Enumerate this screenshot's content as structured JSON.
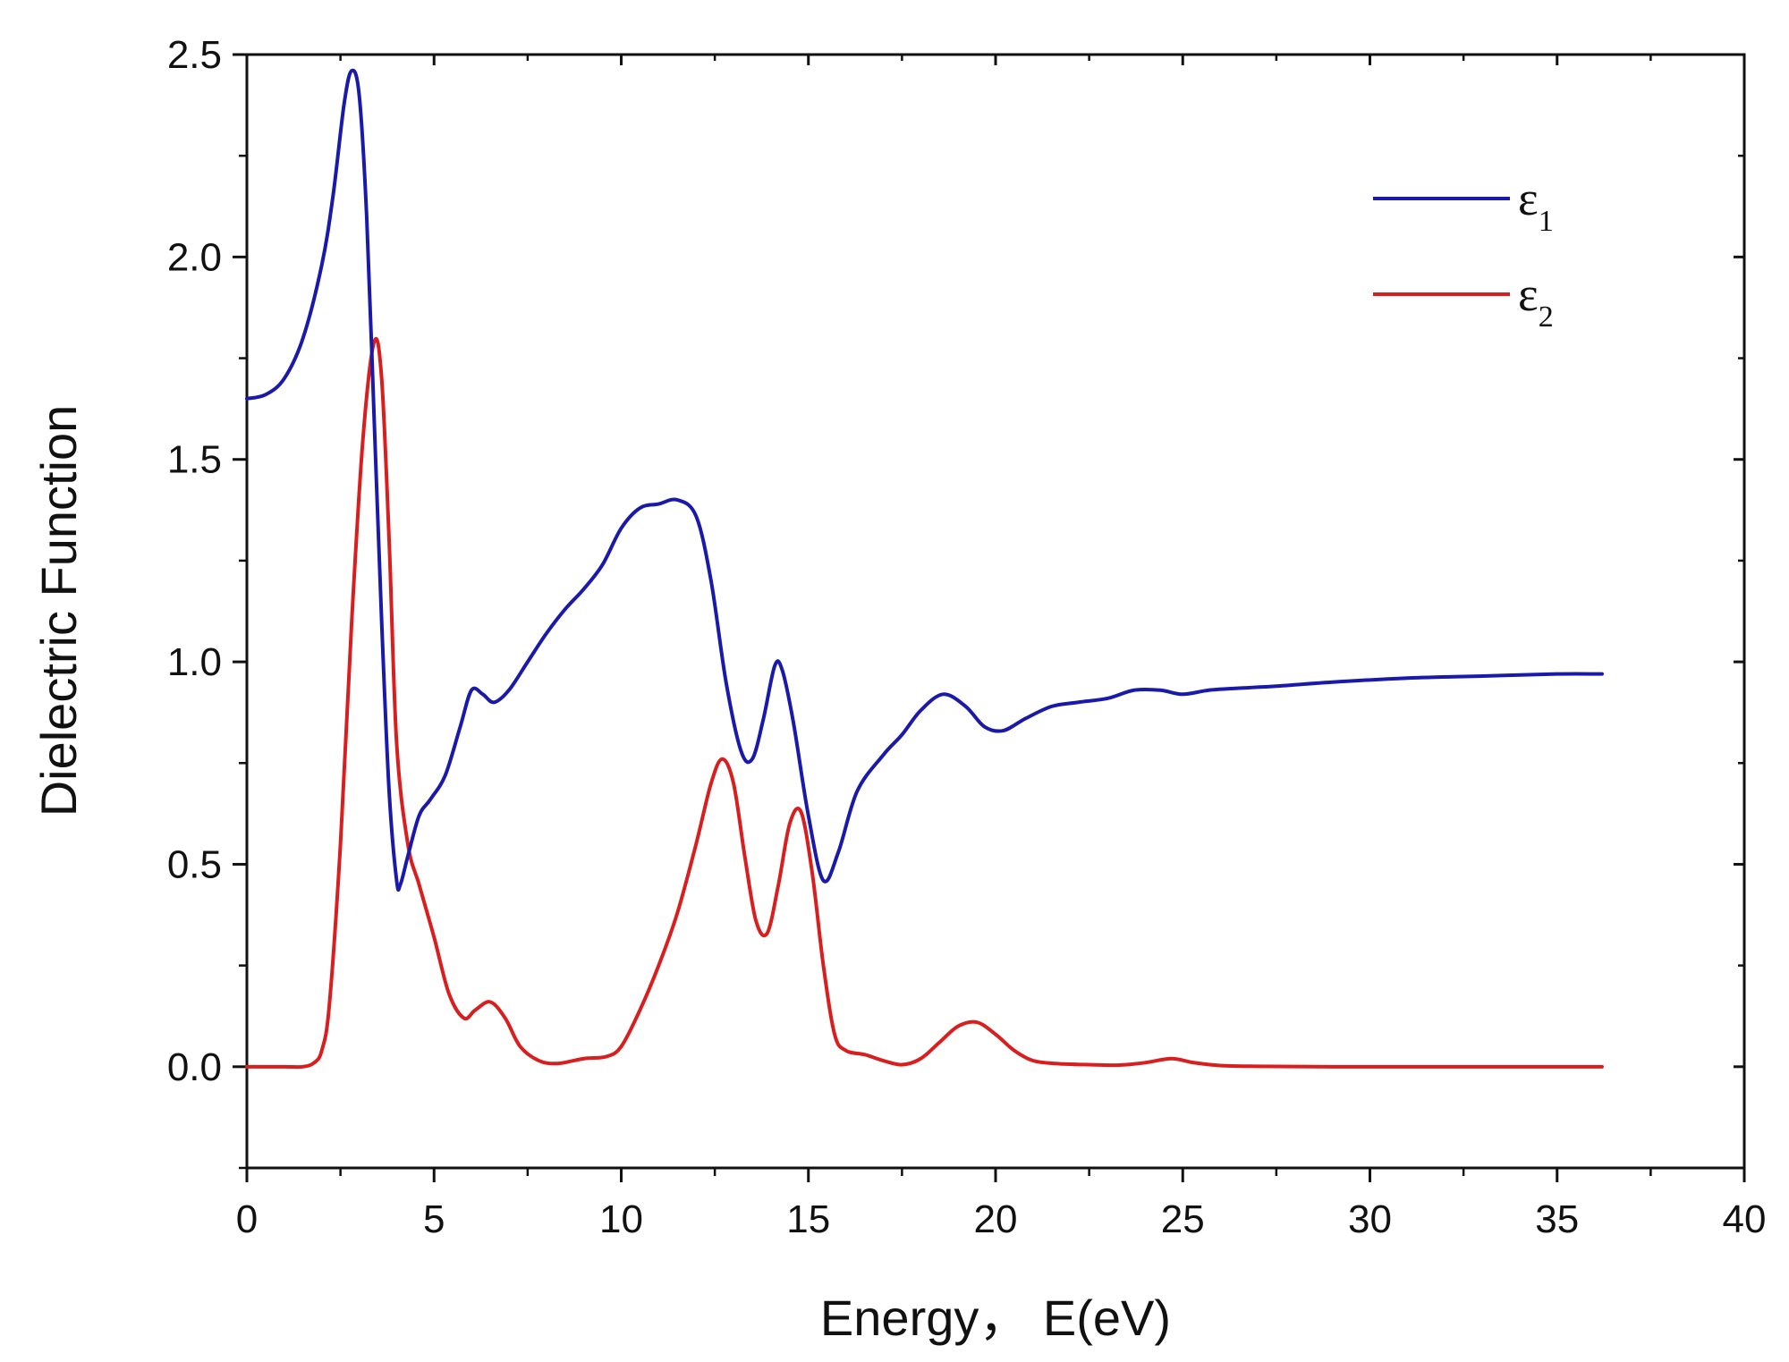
{
  "chart_data": {
    "type": "line",
    "title": "",
    "xlabel": "Energy， E(eV)",
    "ylabel": "Dielectric Function",
    "xlim": [
      0,
      40
    ],
    "ylim": [
      -0.25,
      2.5
    ],
    "xticks": [
      0,
      5,
      10,
      15,
      20,
      25,
      30,
      35,
      40
    ],
    "xtick_labels": [
      "0",
      "5",
      "10",
      "15",
      "20",
      "25",
      "30",
      "35",
      "40"
    ],
    "yticks": [
      0.0,
      0.5,
      1.0,
      1.5,
      2.0,
      2.5
    ],
    "ytick_labels": [
      "0.0",
      "0.5",
      "1.0",
      "1.5",
      "2.0",
      "2.5"
    ],
    "grid": false,
    "legend_position": "top-right",
    "series": [
      {
        "name": "ε1",
        "symbol": "ε",
        "subscript": "1",
        "color": "#1a1aaa",
        "x": [
          0,
          0.5,
          1.0,
          1.5,
          2.0,
          2.3,
          2.6,
          2.8,
          3.0,
          3.2,
          3.4,
          3.6,
          3.8,
          4.0,
          4.1,
          4.3,
          4.6,
          4.9,
          5.3,
          5.7,
          6.0,
          6.3,
          6.6,
          7.0,
          7.5,
          8.0,
          8.5,
          9.0,
          9.5,
          10.0,
          10.5,
          11.0,
          11.5,
          12.0,
          12.4,
          12.8,
          13.2,
          13.5,
          13.8,
          14.1,
          14.3,
          14.6,
          15.0,
          15.4,
          15.8,
          16.3,
          17.0,
          17.5,
          18.0,
          18.6,
          19.2,
          19.7,
          20.2,
          20.8,
          21.5,
          22.2,
          23.0,
          23.7,
          24.4,
          25.0,
          25.7,
          26.5,
          27.5,
          29.0,
          31.0,
          33.0,
          35.0,
          36.2
        ],
        "values": [
          1.65,
          1.66,
          1.7,
          1.8,
          1.98,
          2.15,
          2.38,
          2.46,
          2.4,
          2.1,
          1.6,
          1.1,
          0.68,
          0.46,
          0.45,
          0.52,
          0.62,
          0.66,
          0.72,
          0.84,
          0.93,
          0.92,
          0.9,
          0.93,
          1.0,
          1.07,
          1.13,
          1.18,
          1.24,
          1.33,
          1.38,
          1.39,
          1.4,
          1.36,
          1.2,
          0.95,
          0.78,
          0.76,
          0.86,
          0.99,
          0.98,
          0.85,
          0.62,
          0.46,
          0.53,
          0.68,
          0.77,
          0.82,
          0.88,
          0.92,
          0.89,
          0.84,
          0.83,
          0.86,
          0.89,
          0.9,
          0.91,
          0.93,
          0.93,
          0.92,
          0.93,
          0.935,
          0.94,
          0.95,
          0.96,
          0.965,
          0.97,
          0.97
        ]
      },
      {
        "name": "ε2",
        "symbol": "ε",
        "subscript": "2",
        "color": "#d81e1e",
        "x": [
          0,
          1.0,
          1.5,
          1.8,
          2.0,
          2.2,
          2.5,
          2.8,
          3.1,
          3.4,
          3.6,
          3.8,
          4.0,
          4.3,
          4.6,
          5.0,
          5.4,
          5.8,
          6.1,
          6.5,
          6.9,
          7.3,
          7.8,
          8.3,
          9.0,
          9.6,
          10.0,
          10.5,
          11.0,
          11.5,
          12.0,
          12.4,
          12.7,
          13.0,
          13.3,
          13.6,
          13.9,
          14.2,
          14.5,
          14.8,
          15.1,
          15.4,
          15.7,
          16.0,
          16.5,
          17.0,
          17.5,
          18.0,
          18.5,
          19.0,
          19.5,
          20.0,
          20.5,
          21.0,
          21.6,
          22.5,
          23.3,
          24.0,
          24.7,
          25.3,
          26.0,
          27.0,
          29.0,
          32.0,
          36.2
        ],
        "values": [
          0.0,
          0.0,
          0.0,
          0.01,
          0.04,
          0.15,
          0.55,
          1.1,
          1.55,
          1.79,
          1.7,
          1.3,
          0.8,
          0.55,
          0.45,
          0.32,
          0.18,
          0.12,
          0.14,
          0.16,
          0.12,
          0.05,
          0.015,
          0.008,
          0.02,
          0.025,
          0.05,
          0.14,
          0.25,
          0.38,
          0.55,
          0.7,
          0.76,
          0.7,
          0.52,
          0.36,
          0.33,
          0.45,
          0.6,
          0.63,
          0.48,
          0.25,
          0.08,
          0.04,
          0.03,
          0.015,
          0.005,
          0.02,
          0.06,
          0.1,
          0.11,
          0.08,
          0.04,
          0.015,
          0.008,
          0.005,
          0.004,
          0.01,
          0.02,
          0.01,
          0.003,
          0.001,
          0.0,
          0.0,
          0.0
        ]
      }
    ]
  }
}
